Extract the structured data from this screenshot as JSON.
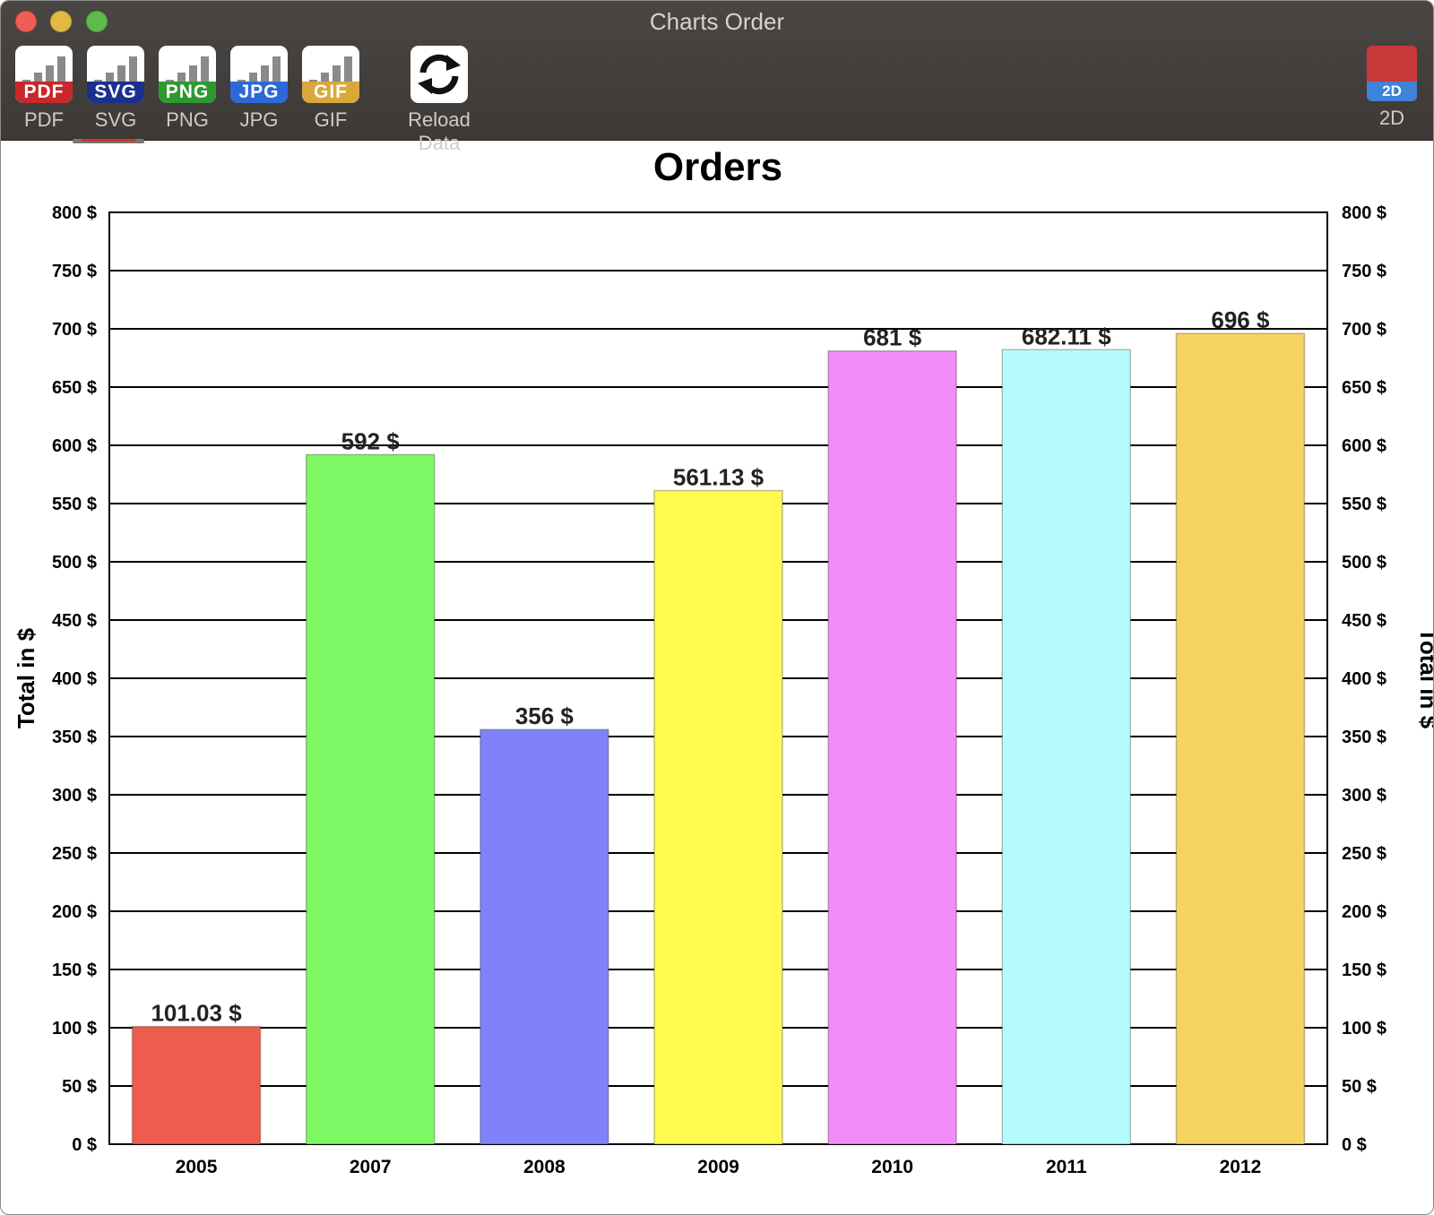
{
  "window": {
    "title": "Charts Order"
  },
  "toolbar": {
    "buttons": [
      {
        "id": "pdf",
        "badge": "PDF",
        "label": "PDF",
        "color": "#c8282c"
      },
      {
        "id": "svg",
        "badge": "SVG",
        "label": "SVG",
        "color": "#1b2f8f"
      },
      {
        "id": "png",
        "badge": "PNG",
        "label": "PNG",
        "color": "#2c9a2f"
      },
      {
        "id": "jpg",
        "badge": "JPG",
        "label": "JPG",
        "color": "#2d68d8"
      },
      {
        "id": "gif",
        "badge": "GIF",
        "label": "GIF",
        "color": "#d9a83a"
      }
    ],
    "reload_label": "Reload Data",
    "mode_badge": "2D",
    "mode_label": "2D"
  },
  "chart_data": {
    "type": "bar",
    "title": "Orders",
    "ylabel": "Total in $",
    "ylabel_right": "Total in $",
    "xlabel": "",
    "categories": [
      "2005",
      "2007",
      "2008",
      "2009",
      "2010",
      "2011",
      "2012"
    ],
    "values": [
      101.03,
      592,
      356,
      561.13,
      681,
      682.11,
      696
    ],
    "value_labels": [
      "101.03 $",
      "592 $",
      "356 $",
      "561.13 $",
      "681 $",
      "682.11 $",
      "696 $"
    ],
    "colors": [
      "#ee5c4e",
      "#7ef864",
      "#7f82f8",
      "#fefa4f",
      "#f28df8",
      "#b6fbfb",
      "#f7d460"
    ],
    "ylim": [
      0,
      800
    ],
    "yticks": [
      "0 $",
      "50 $",
      "100 $",
      "150 $",
      "200 $",
      "250 $",
      "300 $",
      "350 $",
      "400 $",
      "450 $",
      "500 $",
      "550 $",
      "600 $",
      "650 $",
      "700 $",
      "750 $",
      "800 $"
    ],
    "grid": true,
    "legend": "none"
  }
}
